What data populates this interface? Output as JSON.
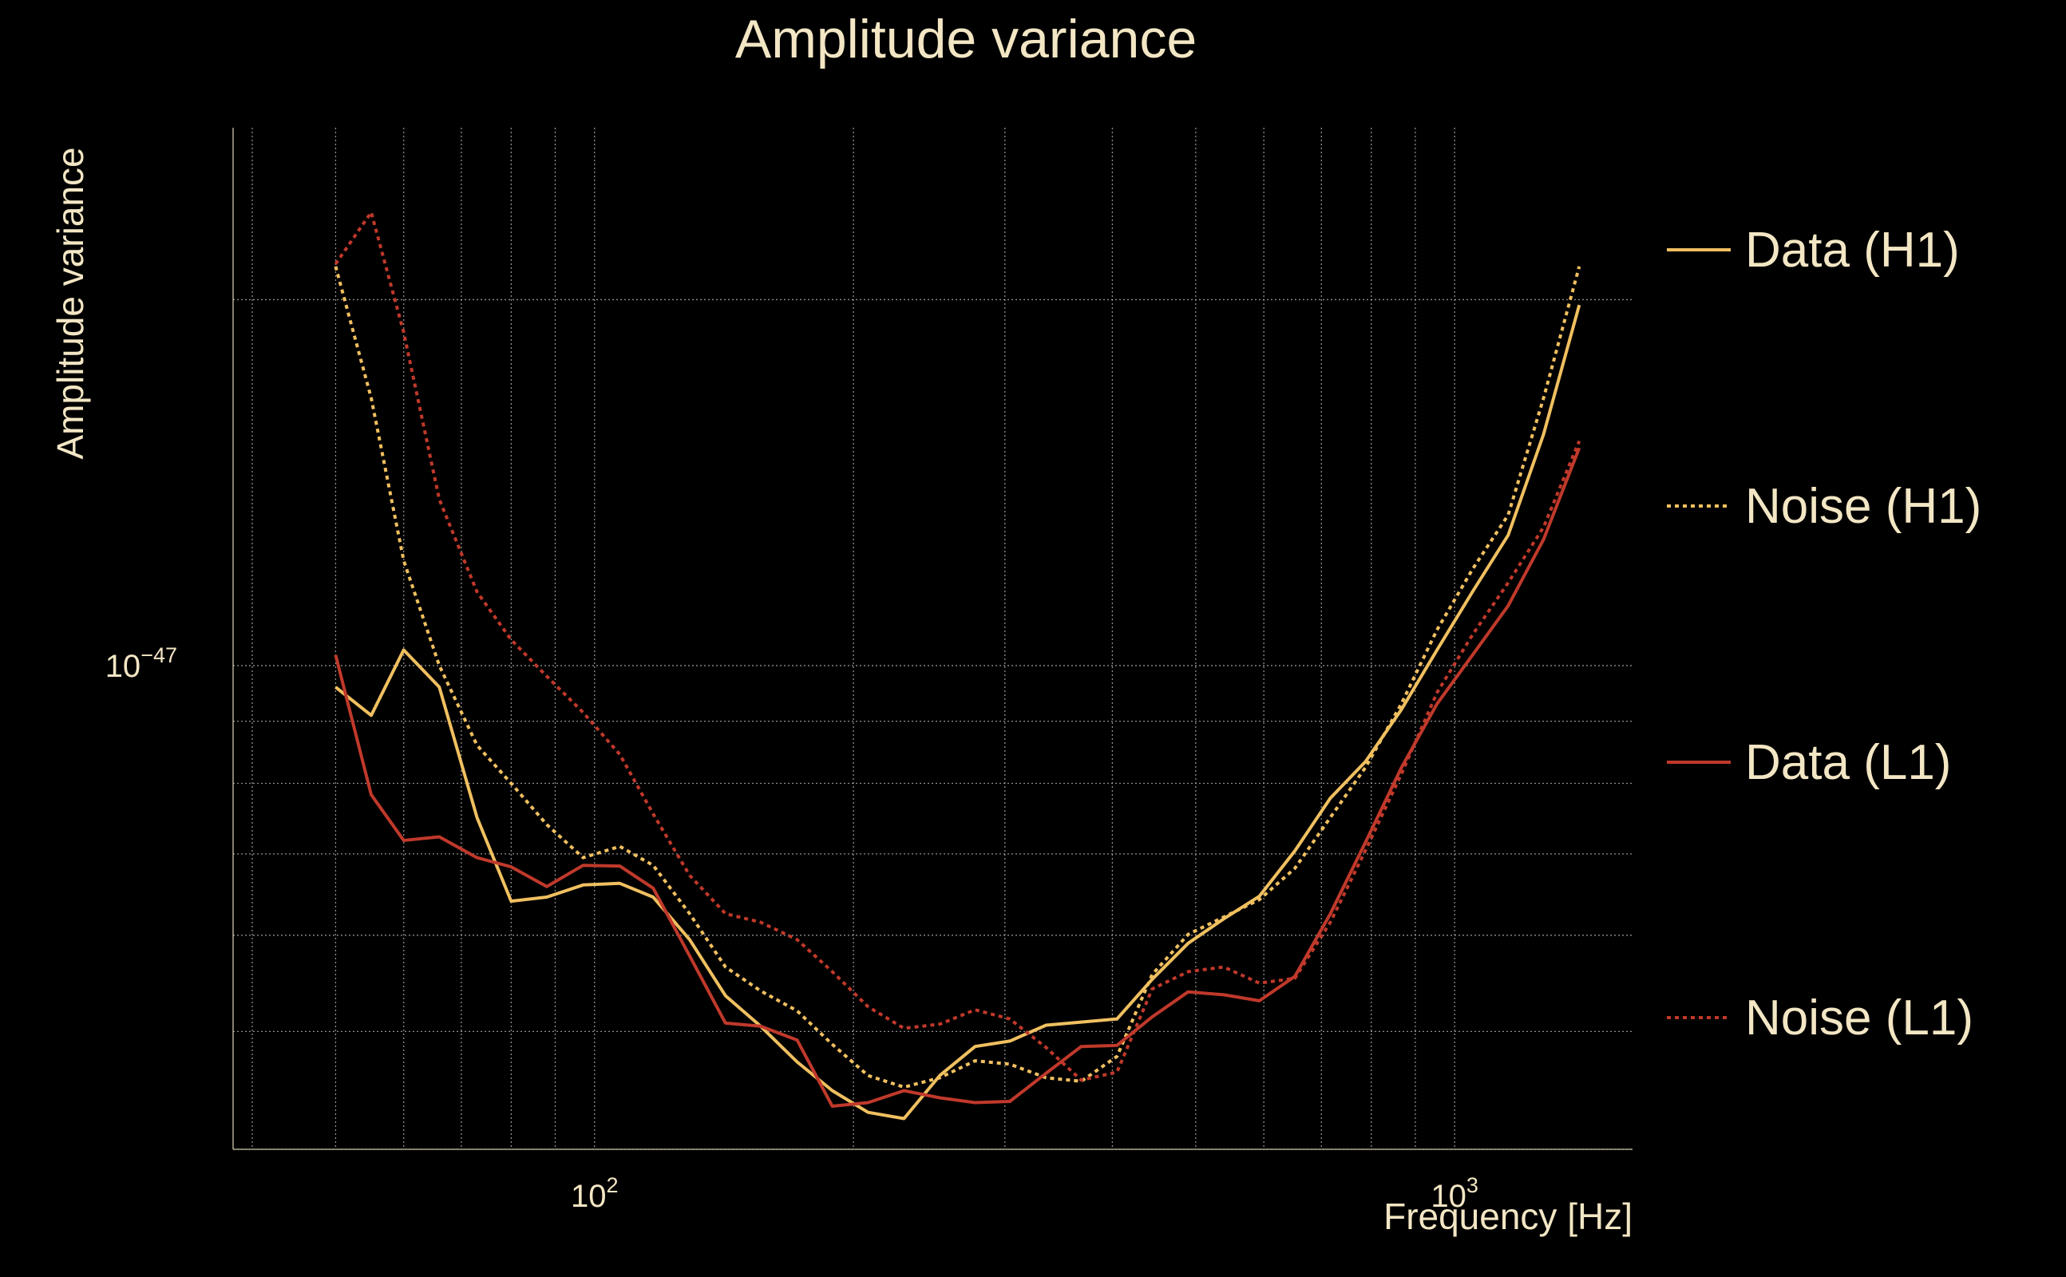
{
  "chart_data": {
    "type": "line",
    "title": "Amplitude variance",
    "xlabel": "Frequency [Hz]",
    "ylabel": "Amplitude variance",
    "xscale": "log",
    "yscale": "log",
    "xlim": [
      38,
      1610
    ],
    "ylim": [
      4e-48,
      2.77e-47
    ],
    "xticks": [
      {
        "value": 100,
        "base": "10",
        "exp": "2"
      },
      {
        "value": 1000,
        "base": "10",
        "exp": "3"
      }
    ],
    "yticks": [
      {
        "value": 1e-47,
        "base": "10",
        "exp": "−47"
      }
    ],
    "grid": true,
    "legend_position": "right",
    "series": [
      {
        "name": "Data (H1)",
        "color": "#f0c060",
        "style": "solid",
        "x": [
          50,
          55,
          60,
          66,
          73,
          80,
          88,
          97,
          107,
          117,
          129,
          142,
          156,
          172,
          189,
          208,
          229,
          252,
          277,
          304,
          335,
          368,
          405,
          445,
          490,
          539,
          593,
          652,
          717,
          788,
          867,
          954,
          1049,
          1154,
          1269,
          1396
        ],
        "y": [
          9.6e-48,
          9.1e-48,
          1.03e-47,
          9.6e-48,
          7.5e-48,
          6.4e-48,
          6.45e-48,
          6.6e-48,
          6.62e-48,
          6.45e-48,
          5.95e-48,
          5.35e-48,
          5.05e-48,
          4.72e-48,
          4.47e-48,
          4.29e-48,
          4.24e-48,
          4.6e-48,
          4.86e-48,
          4.91e-48,
          5.06e-48,
          5.09e-48,
          5.12e-48,
          5.52e-48,
          5.91e-48,
          6.19e-48,
          6.46e-48,
          7.04e-48,
          7.78e-48,
          8.34e-48,
          9.2e-48,
          1.03e-47,
          1.15e-47,
          1.28e-47,
          1.55e-47,
          1.98e-47
        ]
      },
      {
        "name": "Noise (H1)",
        "color": "#f0c060",
        "style": "dotted",
        "x": [
          50,
          55,
          60,
          66,
          73,
          80,
          88,
          97,
          107,
          117,
          129,
          142,
          156,
          172,
          189,
          208,
          229,
          252,
          277,
          304,
          335,
          368,
          405,
          445,
          490,
          539,
          593,
          652,
          717,
          788,
          867,
          954,
          1049,
          1154,
          1269,
          1396
        ],
        "y": [
          2.13e-47,
          1.66e-47,
          1.22e-47,
          1e-47,
          8.6e-48,
          8e-48,
          7.4e-48,
          6.95e-48,
          7.1e-48,
          6.85e-48,
          6.25e-48,
          5.65e-48,
          5.4e-48,
          5.2e-48,
          4.88e-48,
          4.6e-48,
          4.5e-48,
          4.58e-48,
          4.73e-48,
          4.7e-48,
          4.58e-48,
          4.55e-48,
          4.77e-48,
          5.57e-48,
          6.01e-48,
          6.21e-48,
          6.42e-48,
          6.81e-48,
          7.5e-48,
          8.25e-48,
          9.3e-48,
          1.07e-47,
          1.2e-47,
          1.33e-47,
          1.66e-47,
          2.13e-47
        ]
      },
      {
        "name": "Data (L1)",
        "color": "#c0392b",
        "style": "solid",
        "x": [
          50,
          55,
          60,
          66,
          73,
          80,
          88,
          97,
          107,
          117,
          129,
          142,
          156,
          172,
          189,
          208,
          229,
          252,
          277,
          304,
          335,
          368,
          405,
          445,
          490,
          539,
          593,
          652,
          717,
          788,
          867,
          954,
          1049,
          1154,
          1269,
          1396
        ],
        "y": [
          1.02e-47,
          7.83e-48,
          7.18e-48,
          7.23e-48,
          6.95e-48,
          6.83e-48,
          6.58e-48,
          6.85e-48,
          6.84e-48,
          6.56e-48,
          5.77e-48,
          5.08e-48,
          5.05e-48,
          4.92e-48,
          4.34e-48,
          4.37e-48,
          4.47e-48,
          4.41e-48,
          4.37e-48,
          4.38e-48,
          4.62e-48,
          4.86e-48,
          4.87e-48,
          5.14e-48,
          5.39e-48,
          5.36e-48,
          5.3e-48,
          5.55e-48,
          6.25e-48,
          7.16e-48,
          8.24e-48,
          9.3e-48,
          1.02e-47,
          1.12e-47,
          1.27e-47,
          1.51e-47
        ]
      },
      {
        "name": "Noise (L1)",
        "color": "#c0392b",
        "style": "dotted",
        "x": [
          50,
          55,
          60,
          66,
          73,
          80,
          88,
          97,
          107,
          117,
          129,
          142,
          156,
          172,
          189,
          208,
          229,
          252,
          277,
          304,
          335,
          368,
          405,
          445,
          490,
          539,
          593,
          652,
          717,
          788,
          867,
          954,
          1049,
          1154,
          1269,
          1396
        ],
        "y": [
          2.14e-47,
          2.36e-47,
          1.88e-47,
          1.37e-47,
          1.15e-47,
          1.05e-47,
          9.8e-48,
          9.15e-48,
          8.45e-48,
          7.55e-48,
          6.72e-48,
          6.25e-48,
          6.15e-48,
          5.95e-48,
          5.6e-48,
          5.24e-48,
          5.03e-48,
          5.07e-48,
          5.21e-48,
          5.12e-48,
          4.85e-48,
          4.56e-48,
          4.63e-48,
          5.42e-48,
          5.6e-48,
          5.65e-48,
          5.48e-48,
          5.53e-48,
          6.15e-48,
          7.05e-48,
          8.14e-48,
          9.5e-48,
          1.06e-47,
          1.17e-47,
          1.3e-47,
          1.53e-47
        ]
      }
    ]
  }
}
